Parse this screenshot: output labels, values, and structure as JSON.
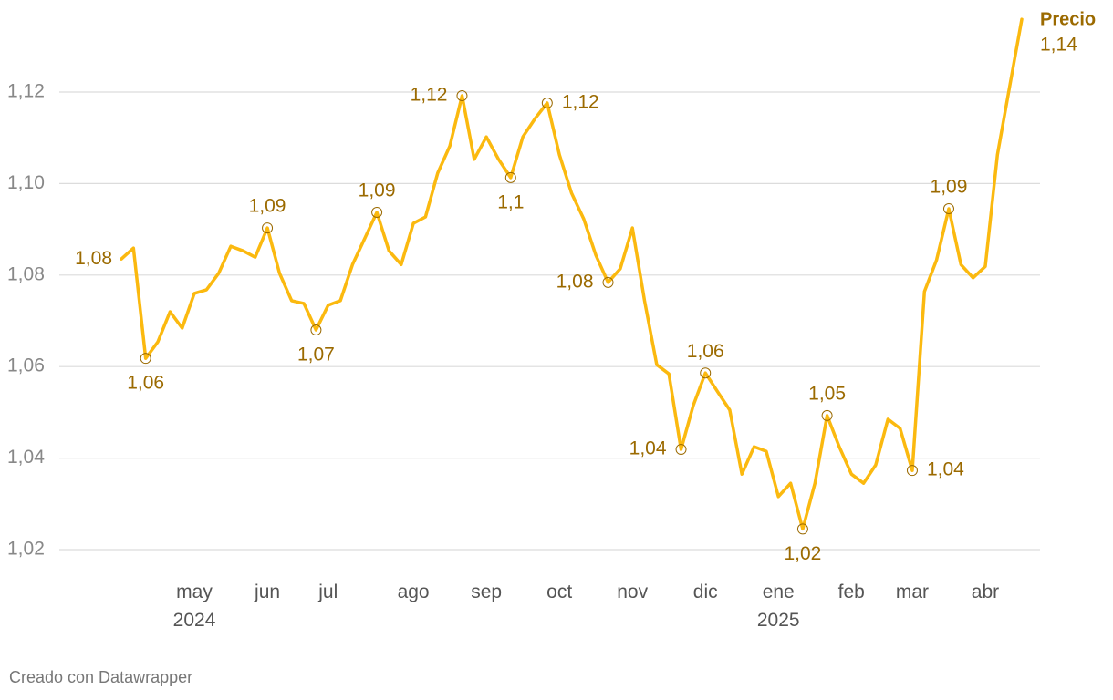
{
  "chart_data": {
    "type": "line",
    "categories": [
      null,
      null,
      null,
      null,
      null,
      null,
      "may\n2024",
      null,
      null,
      null,
      null,
      null,
      "jun",
      null,
      null,
      null,
      null,
      "jul",
      null,
      null,
      null,
      null,
      null,
      null,
      "ago",
      null,
      null,
      null,
      null,
      null,
      "sep",
      null,
      null,
      null,
      null,
      null,
      "oct",
      null,
      null,
      null,
      null,
      null,
      "nov",
      null,
      null,
      null,
      null,
      null,
      "dic",
      null,
      null,
      null,
      null,
      null,
      "ene\n2025",
      null,
      null,
      null,
      null,
      null,
      "feb",
      null,
      null,
      null,
      null,
      "mar",
      null,
      null,
      null,
      null,
      null,
      "abr",
      null,
      null,
      null
    ],
    "series": [
      {
        "name": "Precio",
        "color": "#fbb90f",
        "values": [
          1.0835,
          1.0859,
          1.0618,
          1.0654,
          1.072,
          1.0684,
          1.076,
          1.0768,
          1.0804,
          1.0863,
          1.0853,
          1.0839,
          1.0903,
          1.0804,
          1.0744,
          1.0738,
          1.068,
          1.0734,
          1.0744,
          1.0823,
          1.088,
          1.0937,
          1.0853,
          1.0823,
          1.0913,
          1.0927,
          1.1023,
          1.1082,
          1.1192,
          1.1053,
          1.1102,
          1.1053,
          1.1013,
          1.1102,
          1.1142,
          1.1176,
          1.1063,
          1.0979,
          1.0923,
          1.0843,
          1.0784,
          1.0814,
          1.0903,
          1.0744,
          1.0604,
          1.0584,
          1.0419,
          1.0515,
          1.0586,
          1.0545,
          1.0505,
          1.0365,
          1.0425,
          1.0415,
          1.0316,
          1.0345,
          1.0245,
          1.0345,
          1.0493,
          1.0425,
          1.0365,
          1.0345,
          1.0385,
          1.0485,
          1.0465,
          1.0373,
          1.0764,
          1.0833,
          1.0945,
          1.0823,
          1.0794,
          1.0819,
          1.1063,
          1.1212,
          1.1359
        ],
        "value_labels": [
          "1,08",
          null,
          "1,06",
          null,
          null,
          null,
          null,
          null,
          null,
          null,
          null,
          null,
          "1,09",
          null,
          null,
          null,
          "1,07",
          null,
          null,
          null,
          null,
          "1,09",
          null,
          null,
          null,
          null,
          null,
          null,
          "1,12",
          null,
          null,
          null,
          "1,1",
          null,
          null,
          "1,12",
          null,
          null,
          null,
          null,
          "1,08",
          null,
          null,
          null,
          null,
          null,
          "1,04",
          null,
          "1,06",
          null,
          null,
          null,
          null,
          null,
          null,
          null,
          "1,02",
          null,
          "1,05",
          null,
          null,
          null,
          null,
          null,
          null,
          "1,04",
          null,
          null,
          "1,09",
          null,
          null,
          null,
          null,
          null,
          "1,14"
        ]
      }
    ],
    "ylim": [
      1.02,
      1.14
    ],
    "yticks": [
      {
        "value": 1.02,
        "label": "1,02"
      },
      {
        "value": 1.04,
        "label": "1,04"
      },
      {
        "value": 1.06,
        "label": "1,06"
      },
      {
        "value": 1.08,
        "label": "1,08"
      },
      {
        "value": 1.1,
        "label": "1,10"
      },
      {
        "value": 1.12,
        "label": "1,12"
      }
    ],
    "grid": true,
    "footer": "Creado con Datawrapper"
  }
}
